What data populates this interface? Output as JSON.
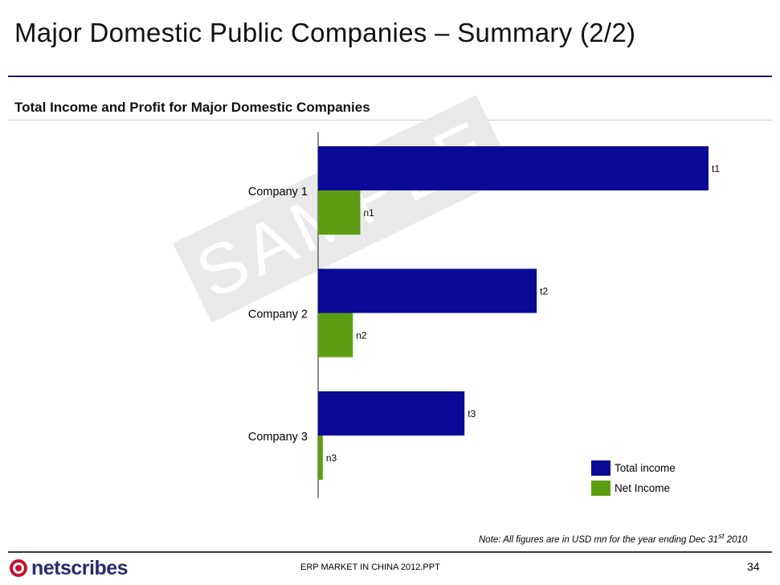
{
  "header": {
    "title": "Major Domestic Public Companies – Summary (2/2)",
    "subtitle": "Total Income and Profit for Major Domestic Companies"
  },
  "watermark": "SAMPLE",
  "chart_data": {
    "type": "bar",
    "orientation": "horizontal",
    "title": "Total Income and Profit for Major Domestic Companies",
    "categories": [
      "Company 1",
      "Company 2",
      "Company 3"
    ],
    "series": [
      {
        "name": "Total income",
        "color": "#0a0a96",
        "values": [
          100,
          56,
          37.5
        ],
        "labels": [
          "t1",
          "t2",
          "t3"
        ]
      },
      {
        "name": "Net Income",
        "color": "#5c9e12",
        "values": [
          10.8,
          8.9,
          1.2
        ],
        "labels": [
          "n1",
          "n2",
          "n3"
        ]
      }
    ],
    "xlim": [
      0,
      100
    ],
    "axis_ticks_shown": false,
    "grid": false,
    "legend": "bottom-right"
  },
  "legend": {
    "items": [
      {
        "label": "Total income",
        "color": "#0a0a96"
      },
      {
        "label": "Net Income",
        "color": "#5c9e12"
      }
    ]
  },
  "note": {
    "text": "Note: All figures are in USD mn for the year ending Dec 31",
    "superscript": "st",
    "year": " 2010"
  },
  "footer": {
    "logo_text": "netscribes",
    "file_name": "ERP MARKET IN CHINA 2012.PPT",
    "page_number": "34"
  }
}
